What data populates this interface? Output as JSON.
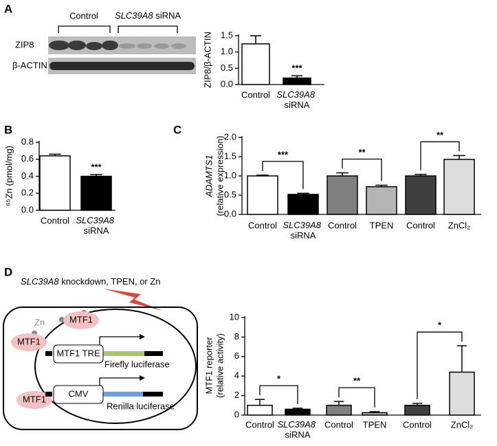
{
  "panels": [
    "A",
    "B",
    "C",
    "D"
  ],
  "blot": {
    "group_labels": [
      "Control",
      "SLC39A8 siRNA"
    ],
    "row_labels": [
      "ZIP8",
      "β-ACTIN"
    ]
  },
  "diagram": {
    "caption": "SLC39A8 knockdown, TPEN, or Zn",
    "zn": "Zn",
    "mtf1": [
      "MTF1",
      "MTF1",
      "MTF1"
    ],
    "boxes": [
      "MTF1 TRE",
      "CMV"
    ],
    "genes": [
      "Firefly luciferase",
      "Renilla luciferase"
    ]
  },
  "chart_data": [
    {
      "type": "bar",
      "ylabel": [
        "ZIP8/β-ACTIN"
      ],
      "categories": [
        "Control",
        "SLC39A8 siRNA"
      ],
      "values": [
        1.25,
        0.2
      ],
      "errors": [
        0.25,
        0.07
      ],
      "colors": [
        "#ffffff",
        "#000000"
      ],
      "ylim": [
        0,
        1.5
      ],
      "yticks": [
        {
          "value": 0,
          "label": "0.0"
        },
        {
          "value": 0.5,
          "label": "0.5"
        },
        {
          "value": 1,
          "label": "1.0"
        },
        {
          "value": 1.5,
          "label": "1.5"
        }
      ],
      "annotations": [
        "***"
      ]
    },
    {
      "type": "bar",
      "ylabel": [
        "⁶⁵Zn (pmol/mg)"
      ],
      "categories": [
        "Control",
        "SLC39A8 siRNA"
      ],
      "values": [
        0.64,
        0.4
      ],
      "errors": [
        0.02,
        0.02
      ],
      "colors": [
        "#ffffff",
        "#000000"
      ],
      "ylim": [
        0,
        0.8
      ],
      "yticks": [
        {
          "value": 0,
          "label": "0.0"
        },
        0.2,
        0.4,
        0.6,
        0.8
      ],
      "annotations": [
        "***"
      ]
    },
    {
      "type": "bar",
      "ylabel": [
        "ADAMTS1",
        "(relative expression)"
      ],
      "categories": [
        "Control",
        "SLC39A8 siRNA",
        "Control",
        "TPEN",
        "Control",
        "ZnCl₂"
      ],
      "values": [
        1.0,
        0.52,
        1.0,
        0.72,
        1.0,
        1.43
      ],
      "errors": [
        0.02,
        0.03,
        0.08,
        0.04,
        0.04,
        0.1
      ],
      "colors": [
        "#ffffff",
        "#000000",
        "#808080",
        "#b4b4b4",
        "#404040",
        "#dcdcdc"
      ],
      "ylim": [
        0,
        2
      ],
      "yticks": [
        {
          "value": 0,
          "label": "0.0"
        },
        0.5,
        {
          "value": 1,
          "label": "1.0"
        },
        1.5,
        {
          "value": 2,
          "label": "2.0"
        }
      ],
      "annotations": [
        "***",
        "**",
        "**"
      ]
    },
    {
      "type": "bar",
      "ylabel": [
        "MTF1 reporter",
        "(relative activity)"
      ],
      "categories": [
        "Control",
        "SLC39A8 siRNA",
        "Control",
        "TPEN",
        "Control",
        "ZnCl₂"
      ],
      "values": [
        1.0,
        0.6,
        1.0,
        0.25,
        1.0,
        4.4
      ],
      "errors": [
        0.6,
        0.1,
        0.4,
        0.1,
        0.2,
        2.7
      ],
      "colors": [
        "#ffffff",
        "#000000",
        "#808080",
        "#b4b4b4",
        "#404040",
        "#dcdcdc"
      ],
      "ylim": [
        0,
        10
      ],
      "yticks": [
        0,
        2,
        4,
        6,
        8,
        10
      ],
      "annotations": [
        "*",
        "**",
        "*"
      ]
    }
  ]
}
